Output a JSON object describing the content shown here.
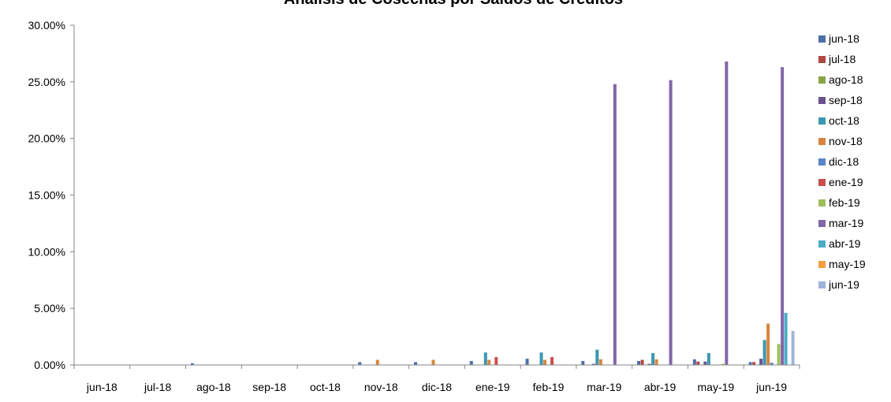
{
  "chart_data": {
    "type": "bar",
    "title": "Análisis de Cosechas por Saldos de Créditos",
    "xlabel": "",
    "ylabel": "",
    "ylim": [
      0,
      30
    ],
    "y_tick_labels": [
      "0.00%",
      "5.00%",
      "10.00%",
      "15.00%",
      "20.00%",
      "25.00%",
      "30.00%"
    ],
    "categories": [
      "jun-18",
      "jul-18",
      "ago-18",
      "sep-18",
      "oct-18",
      "nov-18",
      "dic-18",
      "ene-19",
      "feb-19",
      "mar-19",
      "abr-19",
      "may-19",
      "jun-19"
    ],
    "legend_position": "right",
    "grid": false,
    "series": [
      {
        "name": "jun-18",
        "color": "#4F6FA8",
        "values": [
          0,
          0,
          0.15,
          0,
          0,
          0.25,
          0.25,
          0.35,
          0.55,
          0.35,
          0.35,
          0.5,
          0.25
        ]
      },
      {
        "name": "jul-18",
        "color": "#B14744",
        "values": [
          null,
          0,
          0,
          0,
          0,
          0,
          0,
          0,
          0,
          0,
          0.45,
          0.3,
          0.25
        ]
      },
      {
        "name": "ago-18",
        "color": "#87A448",
        "values": [
          null,
          null,
          0,
          0,
          0,
          0,
          0,
          0,
          0,
          0,
          0,
          0,
          0
        ]
      },
      {
        "name": "sep-18",
        "color": "#6A528F",
        "values": [
          null,
          null,
          null,
          0,
          0,
          0,
          0,
          0,
          0,
          0.1,
          0.1,
          0.3,
          0.55
        ]
      },
      {
        "name": "oct-18",
        "color": "#3B97AF",
        "values": [
          null,
          null,
          null,
          null,
          0,
          0,
          0,
          1.1,
          1.1,
          1.35,
          1.05,
          1.05,
          2.2
        ]
      },
      {
        "name": "nov-18",
        "color": "#D7853E",
        "values": [
          null,
          null,
          null,
          null,
          null,
          0.45,
          0.45,
          0.45,
          0.45,
          0.5,
          0.5,
          0,
          3.65
        ]
      },
      {
        "name": "dic-18",
        "color": "#5B87C6",
        "values": [
          null,
          null,
          null,
          null,
          null,
          null,
          0,
          0,
          0,
          0,
          0,
          0,
          0.2
        ]
      },
      {
        "name": "ene-19",
        "color": "#C9504C",
        "values": [
          null,
          null,
          null,
          null,
          null,
          null,
          null,
          0.7,
          0.7,
          0,
          0,
          0,
          0
        ]
      },
      {
        "name": "feb-19",
        "color": "#9EBE5C",
        "values": [
          null,
          null,
          null,
          null,
          null,
          null,
          null,
          null,
          0,
          0,
          0,
          0.1,
          1.85
        ]
      },
      {
        "name": "mar-19",
        "color": "#8166A8",
        "values": [
          null,
          null,
          null,
          null,
          null,
          null,
          null,
          null,
          null,
          24.8,
          25.15,
          26.8,
          26.3
        ]
      },
      {
        "name": "abr-19",
        "color": "#4AACC6",
        "values": [
          null,
          null,
          null,
          null,
          null,
          null,
          null,
          null,
          null,
          null,
          0,
          0,
          4.6
        ]
      },
      {
        "name": "may-19",
        "color": "#F59D43",
        "values": [
          null,
          null,
          null,
          null,
          null,
          null,
          null,
          null,
          null,
          null,
          null,
          0,
          0
        ]
      },
      {
        "name": "jun-19",
        "color": "#9FB4D9",
        "values": [
          null,
          null,
          null,
          null,
          null,
          null,
          null,
          null,
          null,
          null,
          null,
          null,
          3.0
        ]
      }
    ]
  }
}
